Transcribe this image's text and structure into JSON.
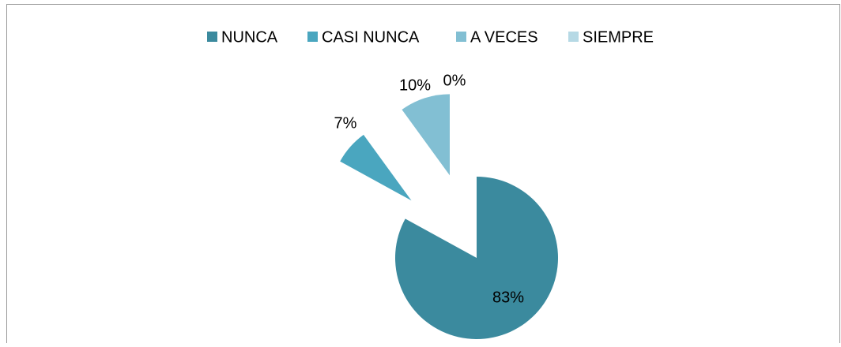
{
  "chart_data": {
    "type": "pie",
    "categories": [
      "NUNCA",
      "CASI NUNCA",
      "A VECES",
      "SIEMPRE"
    ],
    "values": [
      83,
      7,
      10,
      0
    ],
    "value_labels": [
      "83%",
      "7%",
      "10%",
      "0%"
    ],
    "colors": [
      "#3b8a9e",
      "#4aa6bf",
      "#82bfd3",
      "#b6d9e5"
    ],
    "legend": "top"
  }
}
